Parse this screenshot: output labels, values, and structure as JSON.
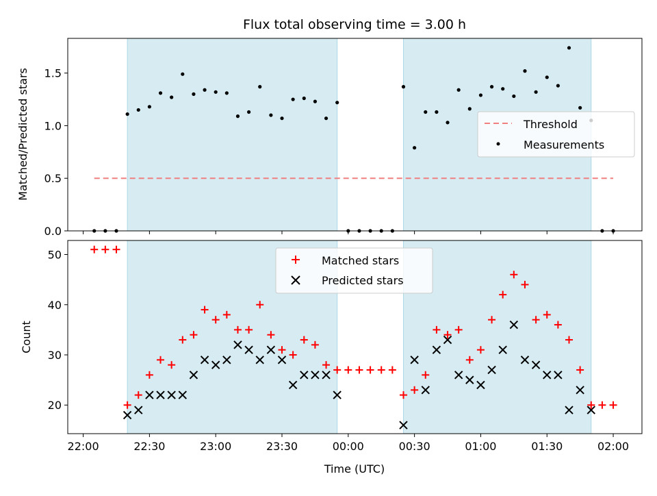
{
  "chart_data": [
    {
      "type": "scatter",
      "title": "Flux total observing time = 3.00 h",
      "xlabel": "",
      "ylabel": "Matched/Predicted stars",
      "xlim": [
        "21:53",
        "02:13"
      ],
      "ylim": [
        0.0,
        1.83
      ],
      "yticks": [
        "0.0",
        "0.5",
        "1.0",
        "1.5"
      ],
      "threshold": 0.5,
      "threshold_range": [
        "22:05",
        "02:00"
      ],
      "shaded_intervals": [
        [
          "22:20",
          "23:55"
        ],
        [
          "00:25",
          "01:50"
        ]
      ],
      "legend_position": "center-right",
      "legend": {
        "threshold_label": "Threshold",
        "measurements_label": "Measurements"
      },
      "colors": {
        "threshold": "#f08080",
        "measurements": "#000000",
        "shading": "#add8e6"
      },
      "series": [
        {
          "name": "Measurements",
          "x": [
            "22:05",
            "22:10",
            "22:15",
            "22:20",
            "22:25",
            "22:30",
            "22:35",
            "22:40",
            "22:45",
            "22:50",
            "22:55",
            "23:00",
            "23:05",
            "23:10",
            "23:15",
            "23:20",
            "23:25",
            "23:30",
            "23:35",
            "23:40",
            "23:45",
            "23:50",
            "23:55",
            "00:00",
            "00:05",
            "00:10",
            "00:15",
            "00:20",
            "00:25",
            "00:30",
            "00:35",
            "00:40",
            "00:45",
            "00:50",
            "00:55",
            "01:00",
            "01:05",
            "01:10",
            "01:15",
            "01:20",
            "01:25",
            "01:30",
            "01:35",
            "01:40",
            "01:45",
            "01:50",
            "01:55",
            "02:00"
          ],
          "y": [
            0.0,
            0.0,
            0.0,
            1.11,
            1.15,
            1.18,
            1.31,
            1.27,
            1.49,
            1.3,
            1.34,
            1.32,
            1.31,
            1.09,
            1.13,
            1.37,
            1.1,
            1.07,
            1.25,
            1.26,
            1.23,
            1.07,
            1.22,
            0.0,
            0.0,
            0.0,
            0.0,
            0.0,
            1.37,
            0.79,
            1.13,
            1.13,
            1.03,
            1.34,
            1.16,
            1.29,
            1.37,
            1.35,
            1.28,
            1.52,
            1.32,
            1.46,
            1.38,
            1.74,
            1.17,
            1.05,
            0.0,
            0.0
          ]
        }
      ]
    },
    {
      "type": "scatter",
      "title": "",
      "xlabel": "Time (UTC)",
      "ylabel": "Count",
      "xlim": [
        "21:53",
        "02:13"
      ],
      "ylim": [
        14.3,
        52.8
      ],
      "yticks": [
        "20",
        "30",
        "40",
        "50"
      ],
      "xticks": [
        "22:00",
        "22:30",
        "23:00",
        "23:30",
        "00:00",
        "00:30",
        "01:00",
        "01:30",
        "02:00"
      ],
      "shaded_intervals": [
        [
          "22:20",
          "23:55"
        ],
        [
          "00:25",
          "01:50"
        ]
      ],
      "legend_position": "upper-center",
      "legend": {
        "matched_label": "Matched stars",
        "predicted_label": "Predicted stars"
      },
      "colors": {
        "matched": "#ff0000",
        "predicted": "#000000",
        "shading": "#add8e6"
      },
      "series": [
        {
          "name": "Matched stars",
          "x": [
            "22:05",
            "22:10",
            "22:15",
            "22:20",
            "22:25",
            "22:30",
            "22:35",
            "22:40",
            "22:45",
            "22:50",
            "22:55",
            "23:00",
            "23:05",
            "23:10",
            "23:15",
            "23:20",
            "23:25",
            "23:30",
            "23:35",
            "23:40",
            "23:45",
            "23:50",
            "23:55",
            "00:00",
            "00:05",
            "00:10",
            "00:15",
            "00:20",
            "00:25",
            "00:30",
            "00:35",
            "00:40",
            "00:45",
            "00:50",
            "00:55",
            "01:00",
            "01:05",
            "01:10",
            "01:15",
            "01:20",
            "01:25",
            "01:30",
            "01:35",
            "01:40",
            "01:45",
            "01:50",
            "01:55",
            "02:00"
          ],
          "y": [
            51,
            51,
            51,
            20,
            22,
            26,
            29,
            28,
            33,
            34,
            39,
            37,
            38,
            35,
            35,
            40,
            34,
            31,
            30,
            33,
            32,
            28,
            27,
            27,
            27,
            27,
            27,
            27,
            22,
            23,
            26,
            35,
            34,
            35,
            29,
            31,
            37,
            42,
            46,
            44,
            37,
            38,
            36,
            33,
            27,
            20,
            20,
            20
          ]
        },
        {
          "name": "Predicted stars",
          "x": [
            "22:20",
            "22:25",
            "22:30",
            "22:35",
            "22:40",
            "22:45",
            "22:50",
            "22:55",
            "23:00",
            "23:05",
            "23:10",
            "23:15",
            "23:20",
            "23:25",
            "23:30",
            "23:35",
            "23:40",
            "23:45",
            "23:50",
            "23:55",
            "00:25",
            "00:30",
            "00:35",
            "00:40",
            "00:45",
            "00:50",
            "00:55",
            "01:00",
            "01:05",
            "01:10",
            "01:15",
            "01:20",
            "01:25",
            "01:30",
            "01:35",
            "01:40",
            "01:45",
            "01:50"
          ],
          "y": [
            18,
            19,
            22,
            22,
            22,
            22,
            26,
            29,
            28,
            29,
            32,
            31,
            29,
            31,
            29,
            24,
            26,
            26,
            26,
            22,
            16,
            29,
            23,
            31,
            33,
            26,
            25,
            24,
            27,
            31,
            36,
            29,
            28,
            26,
            26,
            19,
            23,
            19
          ]
        }
      ]
    }
  ]
}
